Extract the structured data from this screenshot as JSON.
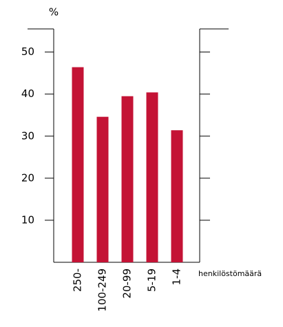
{
  "chart_data": {
    "type": "bar",
    "y_label": "%",
    "x_label": "henkilöstömäärä",
    "categories": [
      "250-",
      "100-249",
      "20-99",
      "5-19",
      "1-4"
    ],
    "values": [
      46.4,
      34.6,
      39.5,
      40.4,
      31.4
    ],
    "color": "#c41335",
    "ylim": [
      0,
      55.5
    ],
    "yticks": [
      10,
      20,
      30,
      40,
      50
    ]
  }
}
